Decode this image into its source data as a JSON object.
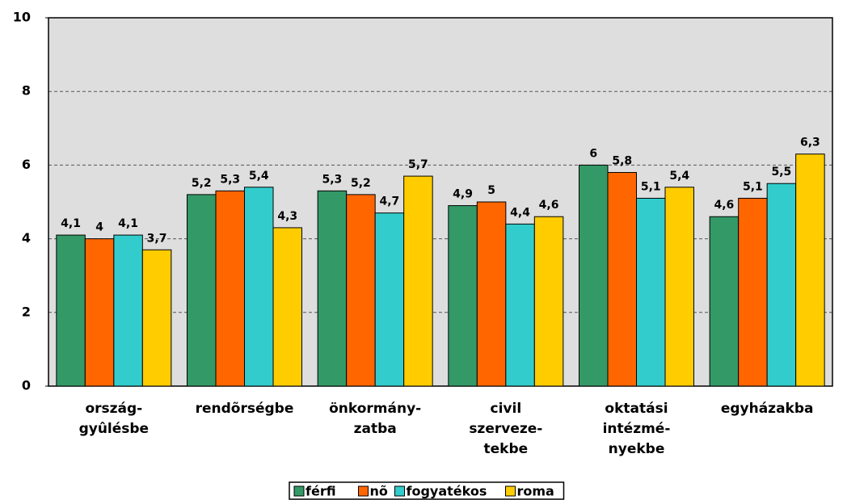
{
  "chart_data": {
    "type": "bar",
    "categories": [
      [
        "ország-",
        "gyûlésbe"
      ],
      [
        "rendõrségbe"
      ],
      [
        "önkormány-",
        "zatba"
      ],
      [
        "civil",
        "szerveze-",
        "tekbe"
      ],
      [
        "oktatási",
        "intézmé-",
        "nyekbe"
      ],
      [
        "egyházakba"
      ]
    ],
    "series": [
      {
        "name": "férfi",
        "color": "#339966",
        "values": [
          4.1,
          5.2,
          5.3,
          4.9,
          6,
          4.6
        ],
        "value_labels": [
          "4,1",
          "5,2",
          "5,3",
          "4,9",
          "6",
          "4,6"
        ]
      },
      {
        "name": "nõ",
        "color": "#ff6600",
        "values": [
          4,
          5.3,
          5.2,
          5,
          5.8,
          5.1
        ],
        "value_labels": [
          "4",
          "5,3",
          "5,2",
          "5",
          "5,8",
          "5,1"
        ]
      },
      {
        "name": "fogyatékos",
        "color": "#33cccc",
        "values": [
          4.1,
          5.4,
          4.7,
          4.4,
          5.1,
          5.5
        ],
        "value_labels": [
          "4,1",
          "5,4",
          "4,7",
          "4,4",
          "5,1",
          "5,5"
        ]
      },
      {
        "name": "roma",
        "color": "#ffcc00",
        "values": [
          3.7,
          4.3,
          5.7,
          4.6,
          5.4,
          6.3
        ],
        "value_labels": [
          "3,7",
          "4,3",
          "5,7",
          "4,6",
          "5,4",
          "6,3"
        ]
      }
    ],
    "ylim": [
      0,
      10
    ],
    "yticks": [
      0,
      2,
      4,
      6,
      8,
      10
    ],
    "grid": true,
    "legend": "bottom"
  }
}
